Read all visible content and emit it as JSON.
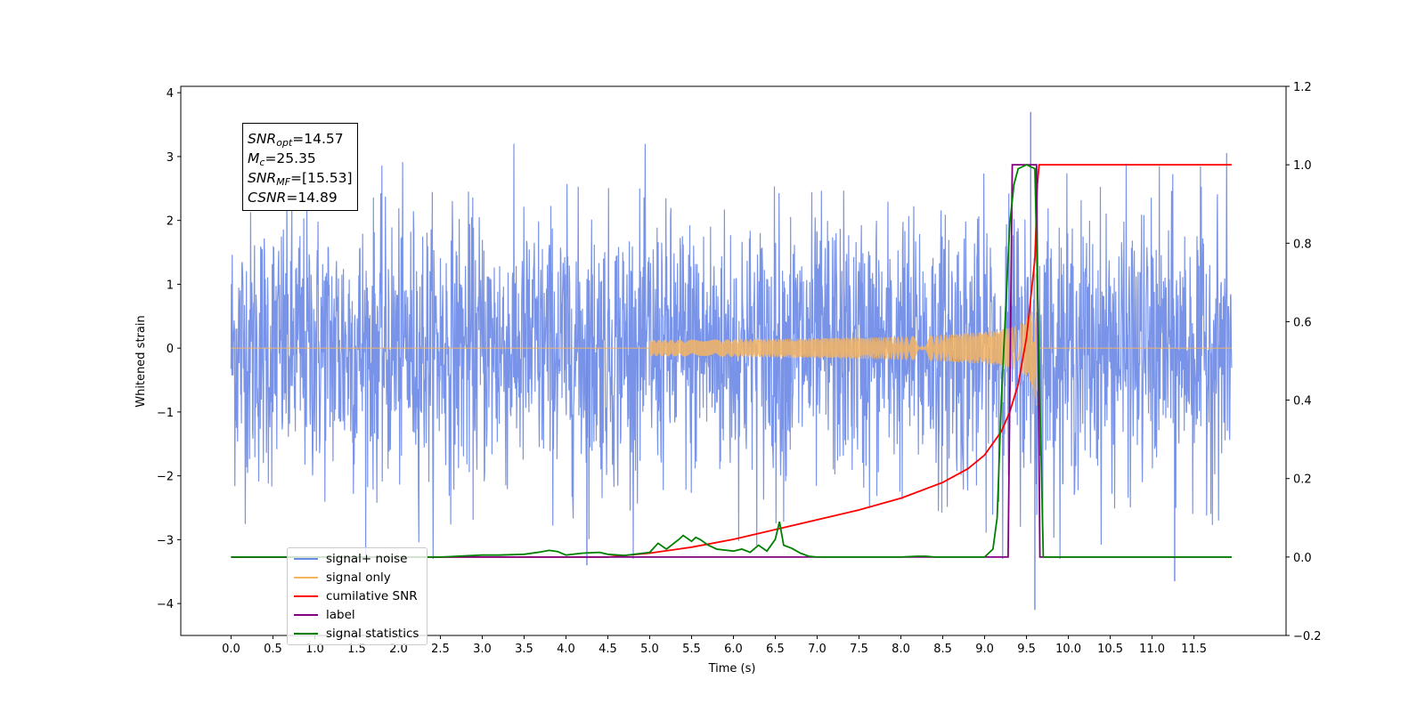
{
  "chart_data": {
    "type": "line",
    "xlabel": "Time (s)",
    "ylabel": "Whitened strain",
    "xlim": [
      -0.6,
      12.6
    ],
    "ylim": [
      -4.5,
      4.1
    ],
    "y2lim": [
      -0.2,
      1.2
    ],
    "x_ticks": [
      "0.0",
      "0.5",
      "1.0",
      "1.5",
      "2.0",
      "2.5",
      "3.0",
      "3.5",
      "4.0",
      "4.5",
      "5.0",
      "5.5",
      "6.0",
      "6.5",
      "7.0",
      "7.5",
      "8.0",
      "8.5",
      "9.0",
      "9.5",
      "10.0",
      "10.5",
      "11.0",
      "11.5"
    ],
    "y_ticks": [
      "4",
      "3",
      "2",
      "1",
      "0",
      "−1",
      "−2",
      "−3",
      "−4"
    ],
    "y2_ticks": [
      "1.2",
      "1.0",
      "0.8",
      "0.6",
      "0.4",
      "0.2",
      "0.0",
      "−0.2"
    ],
    "grid": false,
    "legend_position": "lower-left",
    "annotation": {
      "snr_opt": {
        "sym": "SNR",
        "sub": "opt",
        "value": "=14.57"
      },
      "mc": {
        "sym": "M",
        "sub": "c",
        "value": "=25.35"
      },
      "snr_mf": {
        "sym": "SNR",
        "sub": "MF",
        "value": "=[15.53]"
      },
      "csnr": {
        "sym": "CSNR",
        "value": "=14.89"
      }
    },
    "series": [
      {
        "name": "signal+ noise",
        "color": "#6d8ae6",
        "axis": "left",
        "description_points": {
          "x_range": [
            0.0,
            11.95
          ],
          "amplitude_typical": 2.0,
          "notable_extremes": [
            [
              9.55,
              3.7
            ],
            [
              9.6,
              -4.1
            ],
            [
              11.27,
              -3.65
            ],
            [
              4.25,
              -3.4
            ]
          ]
        }
      },
      {
        "name": "signal only",
        "color": "#f5b461",
        "axis": "left",
        "chirp": {
          "start": 5.0,
          "merger": 9.62,
          "peak_amplitude": 1.2
        }
      },
      {
        "name": "cumilative SNR",
        "color": "#ff0000",
        "axis": "right",
        "x": [
          0.0,
          4.5,
          5.0,
          5.5,
          6.0,
          6.5,
          7.0,
          7.5,
          8.0,
          8.5,
          8.8,
          9.0,
          9.2,
          9.3,
          9.4,
          9.5,
          9.6,
          9.63,
          9.65,
          11.95
        ],
        "y": [
          0.0,
          0.0,
          0.01,
          0.025,
          0.045,
          0.07,
          0.095,
          0.12,
          0.15,
          0.19,
          0.225,
          0.26,
          0.32,
          0.37,
          0.44,
          0.56,
          0.76,
          0.95,
          1.0,
          1.0
        ]
      },
      {
        "name": "label",
        "color": "#800080",
        "axis": "right",
        "x": [
          0.0,
          9.28,
          9.33,
          9.62,
          9.66,
          11.95
        ],
        "y": [
          0.0,
          0.0,
          1.0,
          1.0,
          0.0,
          0.0
        ]
      },
      {
        "name": "signal statistics",
        "color": "#008000",
        "axis": "right",
        "x": [
          0.0,
          2.5,
          3.0,
          3.2,
          3.5,
          3.7,
          3.8,
          3.9,
          4.0,
          4.2,
          4.4,
          4.5,
          4.7,
          5.0,
          5.1,
          5.2,
          5.35,
          5.4,
          5.5,
          5.55,
          5.6,
          5.7,
          5.8,
          6.0,
          6.1,
          6.2,
          6.3,
          6.4,
          6.5,
          6.55,
          6.6,
          6.7,
          6.8,
          6.9,
          7.0,
          8.0,
          8.2,
          8.3,
          8.4,
          9.0,
          9.1,
          9.15,
          9.2,
          9.3,
          9.35,
          9.4,
          9.5,
          9.6,
          9.65,
          9.7,
          11.95
        ],
        "y": [
          0.0,
          0.0,
          0.005,
          0.005,
          0.007,
          0.013,
          0.017,
          0.014,
          0.005,
          0.01,
          0.012,
          0.007,
          0.004,
          0.012,
          0.035,
          0.02,
          0.045,
          0.055,
          0.04,
          0.05,
          0.045,
          0.03,
          0.02,
          0.015,
          0.02,
          0.012,
          0.03,
          0.015,
          0.045,
          0.09,
          0.03,
          0.022,
          0.01,
          0.002,
          0.0,
          0.0,
          0.002,
          0.002,
          0.0,
          0.0,
          0.02,
          0.1,
          0.4,
          0.85,
          0.95,
          0.99,
          1.0,
          0.99,
          0.5,
          0.0,
          0.0
        ]
      }
    ]
  }
}
